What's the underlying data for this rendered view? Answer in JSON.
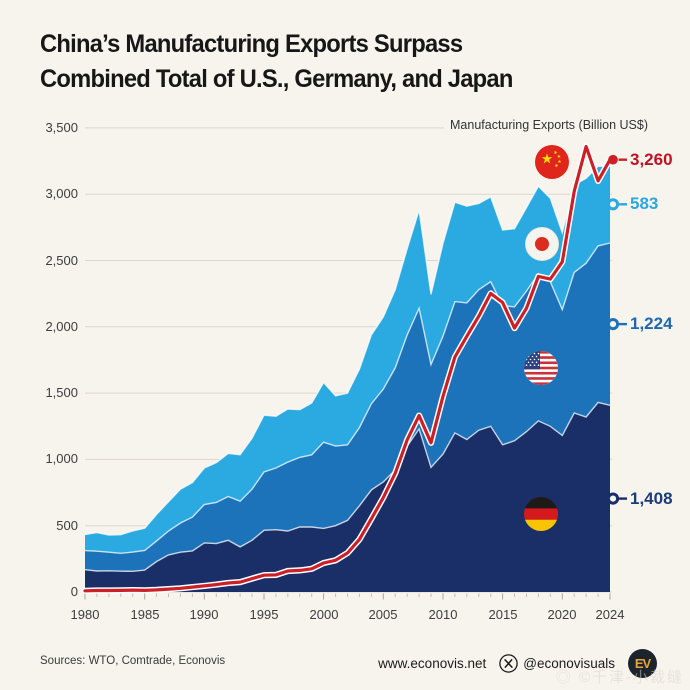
{
  "title": {
    "line1": "China’s Manufacturing Exports Surpass",
    "line2": "Combined Total of U.S., Germany, and Japan"
  },
  "chart_subtitle": "Manufacturing Exports (Billion US$)",
  "colors": {
    "background": "#F7F4EE",
    "gridline": "#DCD7CB",
    "axis_text": "#3d3d3d",
    "germany_area": "#1A2F68",
    "us_area": "#1C73B9",
    "japan_area": "#2BA9E1",
    "china_line": "#CB2027",
    "china_line_casing": "#FFFFFF"
  },
  "chart_data": {
    "type": "area",
    "stacked": true,
    "title": "Manufacturing Exports (Billion US$)",
    "xlabel": "",
    "ylabel": "Billion US$",
    "ylim": [
      0,
      3500
    ],
    "grid": "horizontal",
    "x": [
      1980,
      1981,
      1982,
      1983,
      1984,
      1985,
      1986,
      1987,
      1988,
      1989,
      1990,
      1991,
      1992,
      1993,
      1994,
      1995,
      1996,
      1997,
      1998,
      1999,
      2000,
      2001,
      2002,
      2003,
      2004,
      2005,
      2006,
      2007,
      2008,
      2009,
      2010,
      2011,
      2012,
      2013,
      2014,
      2015,
      2016,
      2017,
      2018,
      2019,
      2020,
      2021,
      2022,
      2023,
      2024
    ],
    "x_tick_labels": [
      "1980",
      "1985",
      "1990",
      "1995",
      "2000",
      "2005",
      "2010",
      "2015",
      "2020",
      "2024"
    ],
    "x_tick_years": [
      1980,
      1985,
      1990,
      1995,
      2000,
      2005,
      2010,
      2015,
      2020,
      2024
    ],
    "y_ticks": [
      0,
      500,
      1000,
      1500,
      2000,
      2500,
      3000,
      3500
    ],
    "y_tick_labels": [
      "0",
      "500",
      "1,000",
      "1,500",
      "2,000",
      "2,500",
      "3,000",
      "3,500"
    ],
    "series": [
      {
        "name": "Germany",
        "kind": "area",
        "color": "#1A2F68",
        "label": "1,408",
        "label_color": "#1C3B77",
        "values": [
          168,
          158,
          160,
          157,
          156,
          165,
          230,
          280,
          300,
          310,
          370,
          365,
          390,
          340,
          390,
          465,
          470,
          460,
          490,
          490,
          480,
          500,
          540,
          650,
          770,
          830,
          920,
          1100,
          1230,
          940,
          1040,
          1200,
          1150,
          1220,
          1250,
          1110,
          1140,
          1210,
          1290,
          1250,
          1180,
          1350,
          1320,
          1430,
          1408
        ]
      },
      {
        "name": "United States",
        "kind": "area",
        "color": "#1C73B9",
        "label": "1,224",
        "label_color": "#2068AE",
        "values": [
          144,
          150,
          140,
          135,
          145,
          148,
          155,
          180,
          220,
          255,
          290,
          310,
          330,
          345,
          385,
          440,
          465,
          520,
          525,
          545,
          650,
          600,
          570,
          590,
          650,
          700,
          770,
          840,
          910,
          775,
          890,
          990,
          1030,
          1060,
          1090,
          1050,
          1010,
          1060,
          1110,
          1090,
          950,
          1060,
          1160,
          1180,
          1224
        ]
      },
      {
        "name": "Japan",
        "kind": "area",
        "color": "#2BA9E1",
        "label": "583",
        "label_color": "#2AA7DF",
        "values": [
          122,
          140,
          130,
          140,
          160,
          168,
          200,
          220,
          255,
          260,
          275,
          300,
          325,
          350,
          385,
          428,
          390,
          400,
          360,
          390,
          450,
          380,
          390,
          440,
          520,
          545,
          590,
          650,
          740,
          530,
          700,
          750,
          730,
          650,
          640,
          570,
          590,
          630,
          660,
          630,
          580,
          660,
          640,
          600,
          583
        ]
      },
      {
        "name": "China",
        "kind": "line",
        "color": "#CB2027",
        "label": "3,260",
        "label_color": "#BE1222",
        "values": [
          9,
          11,
          11,
          12,
          14,
          12,
          16,
          22,
          28,
          37,
          46,
          56,
          68,
          75,
          101,
          127,
          129,
          158,
          163,
          175,
          219,
          239,
          294,
          397,
          553,
          712,
          895,
          1148,
          1330,
          1125,
          1476,
          1772,
          1928,
          2080,
          2252,
          2183,
          1990,
          2140,
          2380,
          2360,
          2490,
          3020,
          3360,
          3100,
          3260
        ]
      }
    ],
    "legend": "flag icons placed on each band (China, Japan, United States, Germany)"
  },
  "footer": {
    "sources": "Sources: WTO, Comtrade, Econovis",
    "website": "www.econovis.net",
    "social_handle": "@econovisuals",
    "logo_text": "EV",
    "watermark": "◎ ©千津-小裁缝"
  }
}
